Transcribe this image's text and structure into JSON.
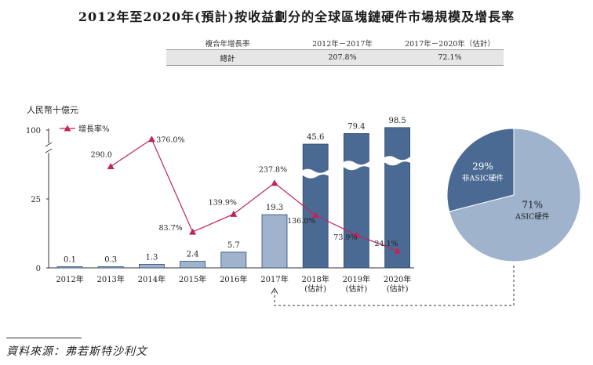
{
  "title": "2012年至2020年(預計)按收益劃分的全球區塊鏈硬件市場規模及增長率",
  "cagr_table": {
    "headers": [
      "複合年增長率",
      "2012年－2017年",
      "2017年－2020年（估計）"
    ],
    "row": [
      "總計",
      "207.8%",
      "72.1%"
    ]
  },
  "source": "資料來源：弗若斯特沙利文",
  "colors": {
    "bar_actual": "#9fb3cc",
    "bar_estimate": "#4b6a93",
    "growth_line": "#c0245a",
    "pie_non_asic": "#4b6a93",
    "pie_asic": "#9fb3cc"
  },
  "chart_data": [
    {
      "type": "bar",
      "ylabel": "人民幣十億元",
      "ylim": [
        0,
        100
      ],
      "yticks": [
        0,
        25,
        100
      ],
      "axis_break": true,
      "categories": [
        "2012年",
        "2013年",
        "2014年",
        "2015年",
        "2016年",
        "2017年",
        "2018年\n(估計)",
        "2019年\n(估計)",
        "2020年\n(估計)"
      ],
      "values": [
        0.1,
        0.3,
        1.3,
        2.4,
        5.7,
        19.3,
        45.6,
        79.4,
        98.5
      ],
      "value_labels": [
        "0.1",
        "0.3",
        "1.3",
        "2.4",
        "5.7",
        "19.3",
        "45.6",
        "79.4",
        "98.5"
      ],
      "estimated": [
        false,
        false,
        false,
        false,
        false,
        false,
        true,
        true,
        true
      ],
      "line_series": {
        "name": "增長率%",
        "x": [
          "2013年",
          "2014年",
          "2015年",
          "2016年",
          "2017年",
          "2018年\n(估計)",
          "2019年\n(估計)",
          "2020年\n(估計)"
        ],
        "values": [
          290.0,
          376.0,
          83.7,
          139.9,
          237.8,
          136.0,
          73.9,
          24.1
        ],
        "labels": [
          "290.0",
          "376.0%",
          "83.7%",
          "139.9%",
          "237.8%",
          "136.0%",
          "73.9%",
          "24.1%"
        ]
      },
      "legend": "top-left"
    },
    {
      "type": "pie",
      "slices": [
        {
          "pct": "29%",
          "value": 29,
          "label": "非ASIC硬件"
        },
        {
          "pct": "71%",
          "value": 71,
          "label": "ASIC硬件"
        }
      ]
    }
  ]
}
